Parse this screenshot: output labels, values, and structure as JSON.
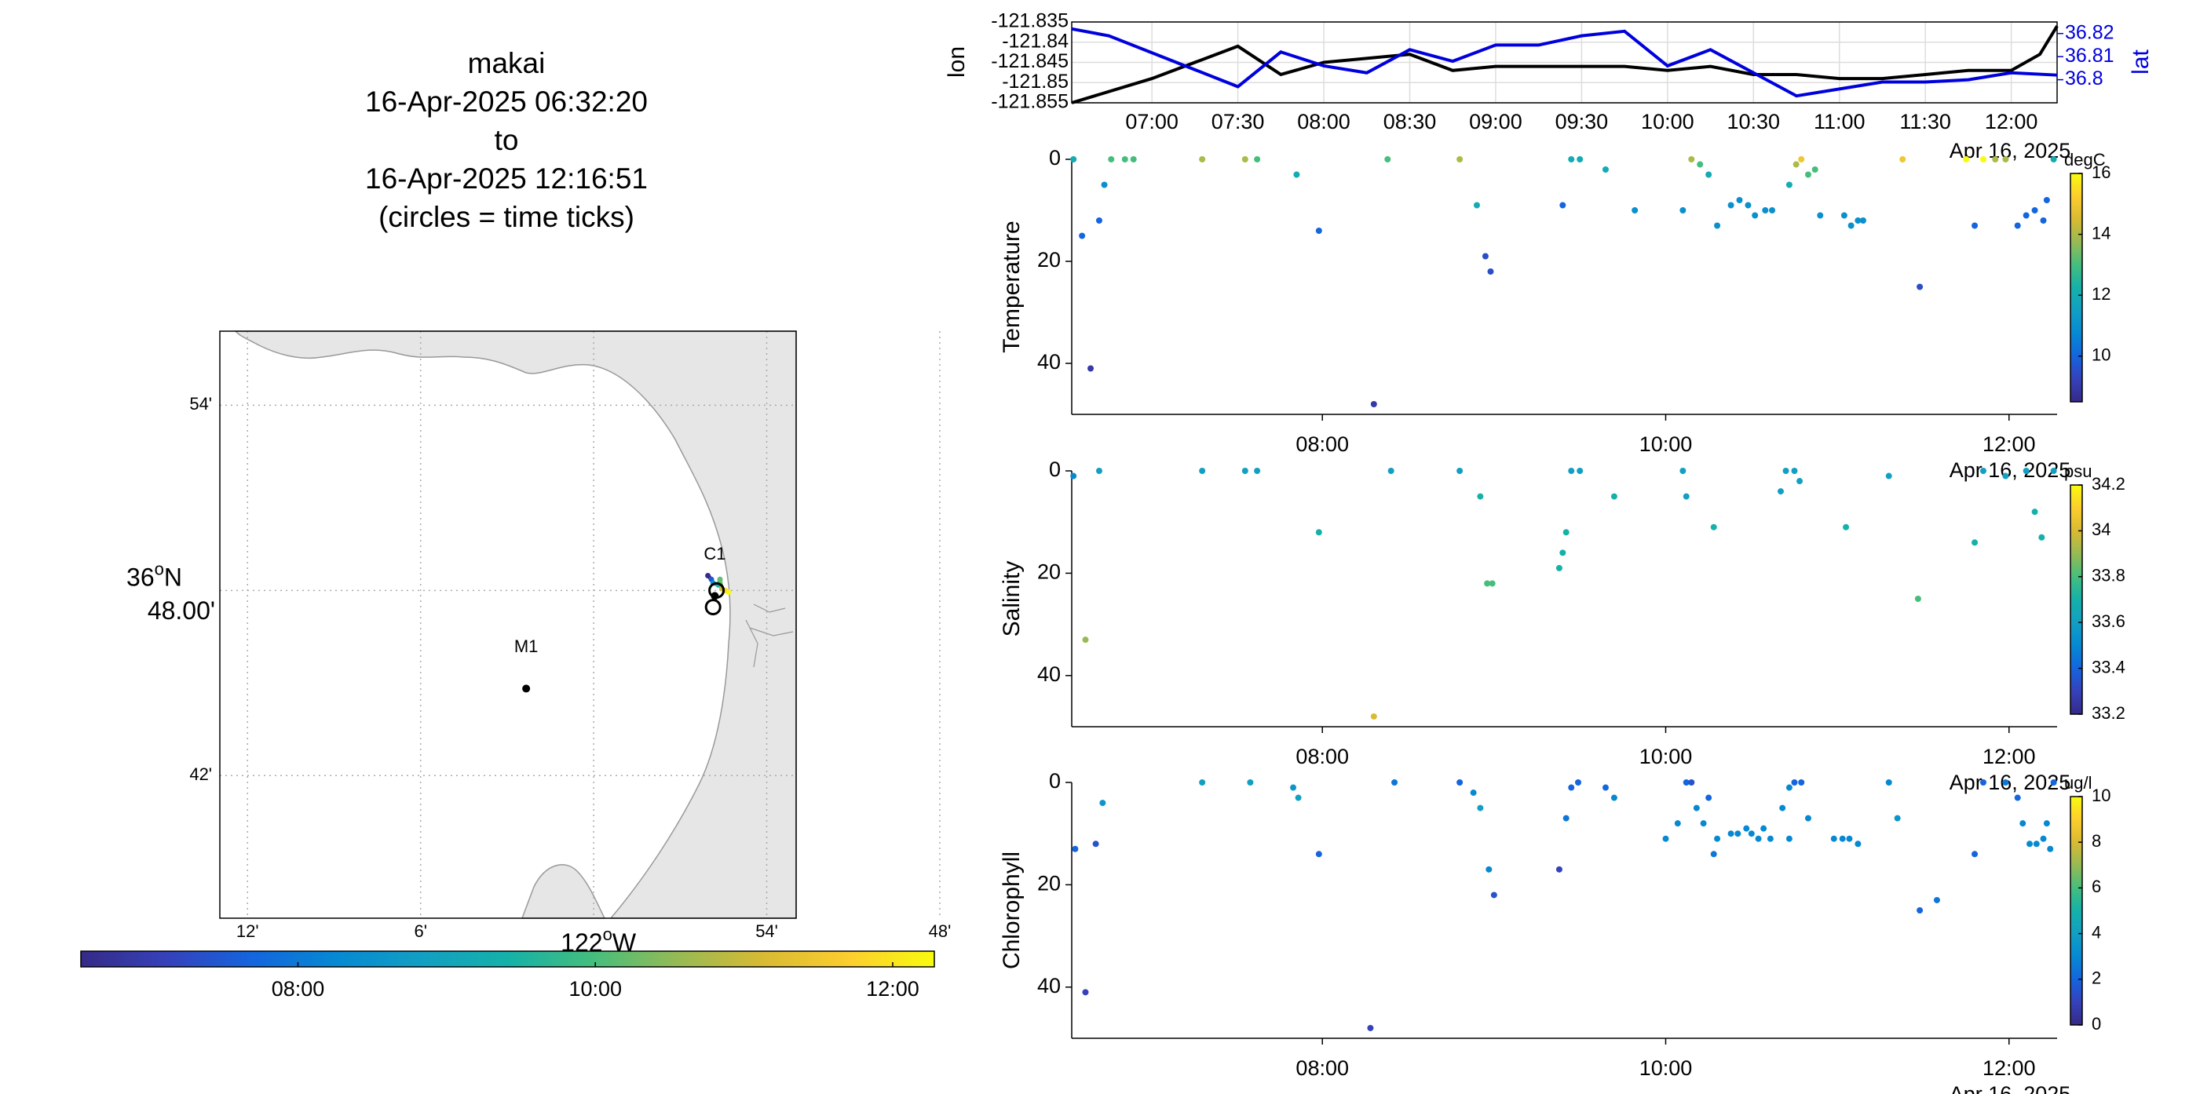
{
  "title": {
    "lines": [
      "makai",
      "16-Apr-2025 06:32:20",
      "to",
      "16-Apr-2025 12:16:51",
      "(circles = time ticks)"
    ]
  },
  "map": {
    "lat_ticks": [
      "54'",
      "42'"
    ],
    "lat_center_deg": "36",
    "lat_center_min": "48.00'",
    "lon_ticks": [
      "12'",
      "6'",
      "54'",
      "48'"
    ],
    "lon_center": "122",
    "lon_hemi": "W",
    "lat_hemi": "N",
    "stations": [
      {
        "label": "M1",
        "lon": -122.039,
        "lat": 36.747
      },
      {
        "label": "C1",
        "lon": -121.93,
        "lat": 36.797
      }
    ],
    "track_points": [
      {
        "lon": -121.934,
        "lat": 36.808,
        "t": 6.6
      },
      {
        "lon": -121.932,
        "lat": 36.806,
        "t": 7.5
      },
      {
        "lon": -121.931,
        "lat": 36.804,
        "t": 8.5
      },
      {
        "lon": -121.928,
        "lat": 36.803,
        "t": 9.5
      },
      {
        "lon": -121.927,
        "lat": 36.806,
        "t": 10.2
      },
      {
        "lon": -121.926,
        "lat": 36.801,
        "t": 11.0
      },
      {
        "lon": -121.924,
        "lat": 36.8,
        "t": 11.8
      },
      {
        "lon": -121.922,
        "lat": 36.799,
        "t": 12.2
      }
    ],
    "time_ticks": [
      {
        "lon": -121.929,
        "lat": 36.8
      },
      {
        "lon": -121.931,
        "lat": 36.791
      }
    ],
    "color_bar": {
      "ticks": [
        "08:00",
        "10:00",
        "12:00"
      ],
      "tmin": 6.54,
      "tmax": 12.28
    }
  },
  "colors": {
    "track_lon": "#000000",
    "track_lat": "#0000dd",
    "land": "#e6e6e6",
    "coast": "#999999"
  },
  "chart_data": [
    {
      "type": "line",
      "series": [
        {
          "name": "lon",
          "axis": "left",
          "x": [
            "06:32",
            "07:00",
            "07:30",
            "07:45",
            "08:00",
            "08:30",
            "08:45",
            "09:00",
            "09:30",
            "09:45",
            "10:00",
            "10:15",
            "10:30",
            "10:45",
            "11:00",
            "11:15",
            "11:30",
            "11:45",
            "12:00",
            "12:10",
            "12:16"
          ],
          "values": [
            -121.855,
            -121.849,
            -121.841,
            -121.848,
            -121.845,
            -121.843,
            -121.847,
            -121.846,
            -121.846,
            -121.846,
            -121.847,
            -121.846,
            -121.848,
            -121.848,
            -121.849,
            -121.849,
            -121.848,
            -121.847,
            -121.847,
            -121.843,
            -121.836
          ]
        },
        {
          "name": "lat",
          "axis": "right",
          "x": [
            "06:32",
            "06:45",
            "07:30",
            "07:45",
            "08:00",
            "08:15",
            "08:30",
            "08:45",
            "09:00",
            "09:15",
            "09:30",
            "09:45",
            "10:00",
            "10:15",
            "10:30",
            "10:45",
            "11:00",
            "11:15",
            "11:30",
            "11:45",
            "12:00",
            "12:16"
          ],
          "values": [
            36.822,
            36.819,
            36.797,
            36.812,
            36.806,
            36.803,
            36.813,
            36.808,
            36.815,
            36.815,
            36.819,
            36.821,
            36.806,
            36.813,
            36.803,
            36.793,
            36.796,
            36.799,
            36.799,
            36.8,
            36.803,
            36.802
          ]
        }
      ],
      "xlabel_ticks": [
        "07:00",
        "07:30",
        "08:00",
        "08:30",
        "09:00",
        "09:30",
        "10:00",
        "10:30",
        "11:00",
        "11:30",
        "12:00"
      ],
      "xlabel": "Apr 16, 2025",
      "ylabel_left": "lon",
      "ylabel_right": "lat",
      "left_ticks": [
        "-121.835",
        "-121.84",
        "-121.845",
        "-121.85",
        "-121.855"
      ],
      "right_ticks": [
        "36.82",
        "36.81",
        "36.8"
      ],
      "xlim": [
        "06:32",
        "12:16"
      ],
      "ylim_left": [
        -121.855,
        -121.835
      ],
      "ylim_right": [
        36.79,
        36.825
      ]
    },
    {
      "type": "scatter",
      "ylabel": "Temperature",
      "unit": "degC",
      "x_ticks": [
        "08:00",
        "10:00",
        "12:00"
      ],
      "xlabel": "Apr 16, 2025",
      "y_ticks": [
        "0",
        "20",
        "40"
      ],
      "ylim": [
        0,
        50
      ],
      "xlim": [
        6.54,
        12.28
      ],
      "clim": [
        8.5,
        16
      ],
      "c_ticks": [
        "16",
        "14",
        "12",
        "10"
      ],
      "points": [
        [
          6.55,
          0,
          12
        ],
        [
          6.6,
          15,
          10
        ],
        [
          6.65,
          41,
          9
        ],
        [
          6.7,
          12,
          10
        ],
        [
          6.73,
          5,
          11
        ],
        [
          6.77,
          0,
          13
        ],
        [
          6.85,
          0,
          13
        ],
        [
          6.9,
          0,
          13
        ],
        [
          7.3,
          0,
          14
        ],
        [
          7.55,
          0,
          14
        ],
        [
          7.62,
          0,
          13
        ],
        [
          7.85,
          3,
          12
        ],
        [
          7.98,
          14,
          10
        ],
        [
          8.3,
          48,
          9
        ],
        [
          8.38,
          0,
          13
        ],
        [
          8.8,
          0,
          14
        ],
        [
          8.9,
          9,
          12
        ],
        [
          8.95,
          19,
          9.5
        ],
        [
          8.98,
          22,
          9.5
        ],
        [
          9.4,
          9,
          10
        ],
        [
          9.45,
          0,
          12
        ],
        [
          9.5,
          0,
          12
        ],
        [
          9.65,
          2,
          12
        ],
        [
          9.82,
          10,
          11
        ],
        [
          10.1,
          10,
          11
        ],
        [
          10.15,
          0,
          14
        ],
        [
          10.2,
          1,
          13
        ],
        [
          10.25,
          3,
          12
        ],
        [
          10.3,
          13,
          11
        ],
        [
          10.38,
          9,
          11
        ],
        [
          10.43,
          8,
          11
        ],
        [
          10.48,
          9,
          11
        ],
        [
          10.52,
          11,
          11
        ],
        [
          10.58,
          10,
          11
        ],
        [
          10.62,
          10,
          11
        ],
        [
          10.72,
          5,
          12
        ],
        [
          10.76,
          1,
          14
        ],
        [
          10.79,
          0,
          15
        ],
        [
          10.83,
          3,
          13
        ],
        [
          10.87,
          2,
          13
        ],
        [
          10.9,
          11,
          11
        ],
        [
          11.04,
          11,
          11
        ],
        [
          11.08,
          13,
          11
        ],
        [
          11.12,
          12,
          11
        ],
        [
          11.15,
          12,
          11
        ],
        [
          11.38,
          0,
          15
        ],
        [
          11.48,
          25,
          9.5
        ],
        [
          11.75,
          0,
          16
        ],
        [
          11.8,
          13,
          10
        ],
        [
          11.85,
          0,
          16
        ],
        [
          11.92,
          0,
          14
        ],
        [
          11.98,
          0,
          14
        ],
        [
          12.05,
          13,
          10
        ],
        [
          12.1,
          11,
          10
        ],
        [
          12.15,
          10,
          10
        ],
        [
          12.2,
          12,
          10
        ],
        [
          12.22,
          8,
          10
        ],
        [
          12.26,
          0,
          12
        ]
      ]
    },
    {
      "type": "scatter",
      "ylabel": "Salinity",
      "unit": "psu",
      "x_ticks": [
        "08:00",
        "10:00",
        "12:00"
      ],
      "xlabel": "Apr 16, 2025",
      "y_ticks": [
        "0",
        "20",
        "40"
      ],
      "ylim": [
        0,
        50
      ],
      "xlim": [
        6.54,
        12.28
      ],
      "clim": [
        33.2,
        34.2
      ],
      "c_ticks": [
        "34.2",
        "34",
        "33.8",
        "33.6",
        "33.4",
        "33.2"
      ],
      "points": [
        [
          6.55,
          1,
          33.5
        ],
        [
          6.62,
          33,
          33.9
        ],
        [
          6.7,
          0,
          33.6
        ],
        [
          7.3,
          0,
          33.6
        ],
        [
          7.55,
          0,
          33.6
        ],
        [
          7.62,
          0,
          33.6
        ],
        [
          7.98,
          12,
          33.7
        ],
        [
          8.3,
          48,
          34.0
        ],
        [
          8.4,
          0,
          33.6
        ],
        [
          8.8,
          0,
          33.6
        ],
        [
          8.92,
          5,
          33.7
        ],
        [
          8.96,
          22,
          33.8
        ],
        [
          8.99,
          22,
          33.8
        ],
        [
          9.38,
          19,
          33.7
        ],
        [
          9.4,
          16,
          33.7
        ],
        [
          9.42,
          12,
          33.7
        ],
        [
          9.45,
          0,
          33.6
        ],
        [
          9.5,
          0,
          33.6
        ],
        [
          9.7,
          5,
          33.7
        ],
        [
          10.1,
          0,
          33.6
        ],
        [
          10.12,
          5,
          33.6
        ],
        [
          10.28,
          11,
          33.7
        ],
        [
          10.67,
          4,
          33.6
        ],
        [
          10.7,
          0,
          33.6
        ],
        [
          10.75,
          0,
          33.6
        ],
        [
          10.78,
          2,
          33.6
        ],
        [
          11.05,
          11,
          33.7
        ],
        [
          11.3,
          1,
          33.6
        ],
        [
          11.47,
          25,
          33.8
        ],
        [
          11.8,
          14,
          33.7
        ],
        [
          11.85,
          0,
          33.6
        ],
        [
          11.98,
          1,
          33.6
        ],
        [
          12.1,
          0,
          33.6
        ],
        [
          12.15,
          8,
          33.7
        ],
        [
          12.19,
          13,
          33.7
        ],
        [
          12.26,
          0,
          33.6
        ]
      ]
    },
    {
      "type": "scatter",
      "ylabel": "Chlorophyll",
      "unit": "ug/l",
      "x_ticks": [
        "08:00",
        "10:00",
        "12:00"
      ],
      "xlabel": "Apr 16, 2025",
      "y_ticks": [
        "0",
        "20",
        "40"
      ],
      "ylim": [
        0,
        50
      ],
      "xlim": [
        6.54,
        12.28
      ],
      "clim": [
        0,
        10
      ],
      "c_ticks": [
        "10",
        "8",
        "6",
        "4",
        "2",
        "0"
      ],
      "points": [
        [
          6.56,
          13,
          2
        ],
        [
          6.62,
          41,
          1
        ],
        [
          6.68,
          12,
          1.5
        ],
        [
          6.72,
          4,
          3.5
        ],
        [
          7.3,
          0,
          4
        ],
        [
          7.58,
          0,
          4
        ],
        [
          7.83,
          1,
          3.5
        ],
        [
          7.86,
          3,
          4
        ],
        [
          7.98,
          14,
          2
        ],
        [
          8.28,
          48,
          1
        ],
        [
          8.42,
          0,
          2.5
        ],
        [
          8.8,
          0,
          2
        ],
        [
          8.88,
          2,
          3
        ],
        [
          8.92,
          5,
          4
        ],
        [
          8.97,
          17,
          3
        ],
        [
          9.0,
          22,
          1.5
        ],
        [
          9.38,
          17,
          1
        ],
        [
          9.42,
          7,
          2.5
        ],
        [
          9.45,
          1,
          2
        ],
        [
          9.49,
          0,
          2
        ],
        [
          9.65,
          1,
          2
        ],
        [
          9.7,
          3,
          3
        ],
        [
          10.0,
          11,
          3
        ],
        [
          10.07,
          8,
          3
        ],
        [
          10.12,
          0,
          2
        ],
        [
          10.15,
          0,
          1.5
        ],
        [
          10.18,
          5,
          3
        ],
        [
          10.22,
          8,
          3
        ],
        [
          10.25,
          3,
          2
        ],
        [
          10.28,
          14,
          2.5
        ],
        [
          10.3,
          11,
          3
        ],
        [
          10.38,
          10,
          3
        ],
        [
          10.42,
          10,
          3
        ],
        [
          10.47,
          9,
          3
        ],
        [
          10.5,
          10,
          3
        ],
        [
          10.54,
          11,
          3
        ],
        [
          10.57,
          9,
          3
        ],
        [
          10.61,
          11,
          3
        ],
        [
          10.72,
          11,
          3
        ],
        [
          10.68,
          5,
          3
        ],
        [
          10.72,
          1,
          3
        ],
        [
          10.75,
          0,
          2
        ],
        [
          10.79,
          0,
          2
        ],
        [
          10.83,
          7,
          3
        ],
        [
          10.98,
          11,
          3
        ],
        [
          11.03,
          11,
          3
        ],
        [
          11.07,
          11,
          3
        ],
        [
          11.12,
          12,
          3
        ],
        [
          11.3,
          0,
          3
        ],
        [
          11.35,
          7,
          3.5
        ],
        [
          11.48,
          25,
          2
        ],
        [
          11.58,
          23,
          2.5
        ],
        [
          11.8,
          14,
          2
        ],
        [
          11.85,
          0,
          2
        ],
        [
          11.98,
          0,
          2.5
        ],
        [
          12.05,
          3,
          2
        ],
        [
          12.08,
          8,
          3
        ],
        [
          12.12,
          12,
          3
        ],
        [
          12.16,
          12,
          3
        ],
        [
          12.2,
          11,
          3
        ],
        [
          12.24,
          13,
          3
        ],
        [
          12.22,
          8,
          3
        ],
        [
          12.26,
          0,
          2
        ]
      ]
    }
  ]
}
